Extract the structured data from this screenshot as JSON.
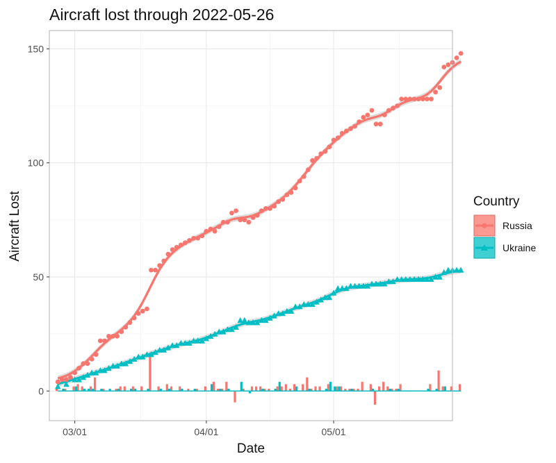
{
  "chart_data": {
    "type": "line",
    "title": "Aircraft lost through 2022-05-26",
    "xlabel": "Date",
    "ylabel": "Aircraft Lost",
    "x_ticks": [
      "03/01",
      "04/01",
      "05/01"
    ],
    "y_ticks": [
      0,
      50,
      100,
      150
    ],
    "x_range_days": [
      -6,
      89
    ],
    "ylim": [
      -13,
      158
    ],
    "legend": {
      "title": "Country",
      "position": "right",
      "entries": [
        "Russia",
        "Ukraine"
      ]
    },
    "colors": {
      "Russia": "#F8766D",
      "Ukraine": "#00BFC4",
      "smooth_band": "#9a9a9a"
    },
    "x_day_index": "days since 2022-03-01",
    "series": [
      {
        "name": "Russia",
        "marker": "circle",
        "cumulative": [
          [
            -4,
            4
          ],
          [
            -3,
            5
          ],
          [
            -2,
            5
          ],
          [
            -1,
            6
          ],
          [
            0,
            8
          ],
          [
            1,
            10
          ],
          [
            2,
            12
          ],
          [
            3,
            12
          ],
          [
            4,
            14
          ],
          [
            5,
            16
          ],
          [
            6,
            22
          ],
          [
            7,
            22
          ],
          [
            8,
            24
          ],
          [
            9,
            24
          ],
          [
            10,
            24
          ],
          [
            11,
            26
          ],
          [
            12,
            28
          ],
          [
            13,
            30
          ],
          [
            14,
            32
          ],
          [
            15,
            34
          ],
          [
            16,
            35
          ],
          [
            17,
            36
          ],
          [
            18,
            53
          ],
          [
            19,
            53
          ],
          [
            20,
            55
          ],
          [
            21,
            57
          ],
          [
            22,
            60
          ],
          [
            23,
            62
          ],
          [
            24,
            63
          ],
          [
            25,
            64
          ],
          [
            26,
            65
          ],
          [
            27,
            66
          ],
          [
            28,
            67
          ],
          [
            29,
            67
          ],
          [
            30,
            68
          ],
          [
            31,
            70
          ],
          [
            32,
            71
          ],
          [
            33,
            70
          ],
          [
            34,
            72
          ],
          [
            35,
            74
          ],
          [
            36,
            74
          ],
          [
            37,
            78
          ],
          [
            38,
            79
          ],
          [
            39,
            75
          ],
          [
            40,
            75
          ],
          [
            41,
            74
          ],
          [
            42,
            76
          ],
          [
            43,
            77
          ],
          [
            44,
            79
          ],
          [
            45,
            80
          ],
          [
            46,
            80
          ],
          [
            47,
            81
          ],
          [
            48,
            83
          ],
          [
            49,
            84
          ],
          [
            50,
            86
          ],
          [
            51,
            87
          ],
          [
            52,
            89
          ],
          [
            53,
            92
          ],
          [
            54,
            94
          ],
          [
            55,
            97
          ],
          [
            56,
            101
          ],
          [
            57,
            102
          ],
          [
            58,
            104
          ],
          [
            59,
            105
          ],
          [
            60,
            107
          ],
          [
            61,
            110
          ],
          [
            62,
            111
          ],
          [
            63,
            113
          ],
          [
            64,
            114
          ],
          [
            65,
            115
          ],
          [
            66,
            116
          ],
          [
            67,
            118
          ],
          [
            68,
            120
          ],
          [
            69,
            121
          ],
          [
            70,
            123
          ],
          [
            71,
            117
          ],
          [
            72,
            117
          ],
          [
            73,
            121
          ],
          [
            74,
            123
          ],
          [
            75,
            124
          ],
          [
            76,
            125
          ],
          [
            77,
            128
          ],
          [
            78,
            128
          ],
          [
            79,
            128
          ],
          [
            80,
            128
          ],
          [
            81,
            128
          ],
          [
            82,
            128
          ],
          [
            83,
            128
          ],
          [
            84,
            128
          ],
          [
            85,
            131
          ],
          [
            86,
            133
          ],
          [
            87,
            142
          ],
          [
            88,
            143
          ],
          [
            89,
            144
          ],
          [
            90,
            146
          ],
          [
            91,
            148
          ]
        ],
        "daily": [
          [
            -4,
            1
          ],
          [
            -2,
            1
          ],
          [
            0,
            2
          ],
          [
            1,
            3
          ],
          [
            2,
            2
          ],
          [
            4,
            2
          ],
          [
            5,
            6
          ],
          [
            7,
            1
          ],
          [
            10,
            1
          ],
          [
            11,
            2
          ],
          [
            12,
            2
          ],
          [
            14,
            2
          ],
          [
            16,
            2
          ],
          [
            18,
            15
          ],
          [
            20,
            2
          ],
          [
            22,
            3
          ],
          [
            23,
            2
          ],
          [
            25,
            2
          ],
          [
            27,
            1
          ],
          [
            29,
            1
          ],
          [
            31,
            2
          ],
          [
            33,
            4
          ],
          [
            34,
            1
          ],
          [
            35,
            1
          ],
          [
            36,
            4
          ],
          [
            38,
            -5
          ],
          [
            40,
            1
          ],
          [
            42,
            2
          ],
          [
            43,
            2
          ],
          [
            44,
            2
          ],
          [
            45,
            1
          ],
          [
            46,
            1
          ],
          [
            48,
            2
          ],
          [
            49,
            2
          ],
          [
            50,
            3
          ],
          [
            51,
            1
          ],
          [
            52,
            3
          ],
          [
            54,
            3
          ],
          [
            55,
            6
          ],
          [
            56,
            1
          ],
          [
            57,
            2
          ],
          [
            58,
            2
          ],
          [
            60,
            3
          ],
          [
            62,
            2
          ],
          [
            63,
            2
          ],
          [
            64,
            1
          ],
          [
            65,
            1
          ],
          [
            66,
            1
          ],
          [
            67,
            1
          ],
          [
            68,
            4
          ],
          [
            70,
            3
          ],
          [
            71,
            -6
          ],
          [
            72,
            2
          ],
          [
            73,
            4
          ],
          [
            74,
            2
          ],
          [
            75,
            1
          ],
          [
            76,
            1
          ],
          [
            77,
            3
          ],
          [
            84,
            3
          ],
          [
            86,
            9
          ],
          [
            87,
            2
          ],
          [
            89,
            2
          ],
          [
            91,
            3
          ]
        ]
      },
      {
        "name": "Ukraine",
        "marker": "triangle",
        "cumulative": [
          [
            -4,
            2
          ],
          [
            -2,
            3
          ],
          [
            0,
            5
          ],
          [
            1,
            5
          ],
          [
            2,
            6
          ],
          [
            3,
            7
          ],
          [
            4,
            8
          ],
          [
            5,
            8
          ],
          [
            6,
            9
          ],
          [
            7,
            9
          ],
          [
            8,
            10
          ],
          [
            9,
            11
          ],
          [
            10,
            11
          ],
          [
            11,
            12
          ],
          [
            12,
            12
          ],
          [
            13,
            13
          ],
          [
            14,
            14
          ],
          [
            15,
            15
          ],
          [
            16,
            15
          ],
          [
            17,
            16
          ],
          [
            18,
            16
          ],
          [
            19,
            17
          ],
          [
            20,
            18
          ],
          [
            21,
            18
          ],
          [
            22,
            19
          ],
          [
            23,
            20
          ],
          [
            24,
            20
          ],
          [
            25,
            21
          ],
          [
            26,
            21
          ],
          [
            27,
            21
          ],
          [
            28,
            22
          ],
          [
            29,
            22
          ],
          [
            30,
            22
          ],
          [
            31,
            23
          ],
          [
            32,
            24
          ],
          [
            33,
            25
          ],
          [
            34,
            26
          ],
          [
            35,
            26
          ],
          [
            36,
            27
          ],
          [
            37,
            27
          ],
          [
            38,
            28
          ],
          [
            39,
            31
          ],
          [
            40,
            31
          ],
          [
            41,
            30
          ],
          [
            42,
            30
          ],
          [
            43,
            30
          ],
          [
            44,
            31
          ],
          [
            45,
            31
          ],
          [
            46,
            32
          ],
          [
            47,
            33
          ],
          [
            48,
            34
          ],
          [
            49,
            34
          ],
          [
            50,
            35
          ],
          [
            51,
            35
          ],
          [
            52,
            37
          ],
          [
            53,
            37
          ],
          [
            54,
            38
          ],
          [
            55,
            38
          ],
          [
            56,
            38
          ],
          [
            57,
            39
          ],
          [
            58,
            40
          ],
          [
            59,
            41
          ],
          [
            60,
            41
          ],
          [
            61,
            43
          ],
          [
            62,
            45
          ],
          [
            63,
            45
          ],
          [
            64,
            45
          ],
          [
            65,
            46
          ],
          [
            66,
            46
          ],
          [
            67,
            46
          ],
          [
            68,
            46
          ],
          [
            69,
            46
          ],
          [
            70,
            47
          ],
          [
            71,
            47
          ],
          [
            72,
            47
          ],
          [
            73,
            47
          ],
          [
            74,
            48
          ],
          [
            75,
            48
          ],
          [
            76,
            49
          ],
          [
            77,
            49
          ],
          [
            78,
            49
          ],
          [
            79,
            49
          ],
          [
            80,
            49
          ],
          [
            81,
            49
          ],
          [
            82,
            49
          ],
          [
            83,
            49
          ],
          [
            84,
            49
          ],
          [
            85,
            50
          ],
          [
            86,
            50
          ],
          [
            87,
            52
          ],
          [
            88,
            53
          ],
          [
            89,
            53
          ],
          [
            90,
            53
          ],
          [
            91,
            53
          ]
        ],
        "daily": [
          [
            -3,
            1
          ],
          [
            0,
            2
          ],
          [
            2,
            1
          ],
          [
            3,
            1
          ],
          [
            4,
            1
          ],
          [
            6,
            1
          ],
          [
            8,
            1
          ],
          [
            10,
            1
          ],
          [
            13,
            1
          ],
          [
            14,
            1
          ],
          [
            17,
            1
          ],
          [
            20,
            1
          ],
          [
            22,
            1
          ],
          [
            25,
            1
          ],
          [
            28,
            1
          ],
          [
            32,
            3
          ],
          [
            34,
            1
          ],
          [
            36,
            1
          ],
          [
            39,
            4
          ],
          [
            41,
            -1
          ],
          [
            44,
            1
          ],
          [
            47,
            1
          ],
          [
            48,
            4
          ],
          [
            52,
            2
          ],
          [
            55,
            1
          ],
          [
            59,
            1
          ],
          [
            60,
            4
          ],
          [
            61,
            2
          ],
          [
            62,
            2
          ],
          [
            65,
            1
          ],
          [
            70,
            1
          ],
          [
            74,
            1
          ],
          [
            76,
            1
          ],
          [
            83,
            1
          ],
          [
            85,
            1
          ],
          [
            87,
            2
          ]
        ]
      }
    ]
  }
}
